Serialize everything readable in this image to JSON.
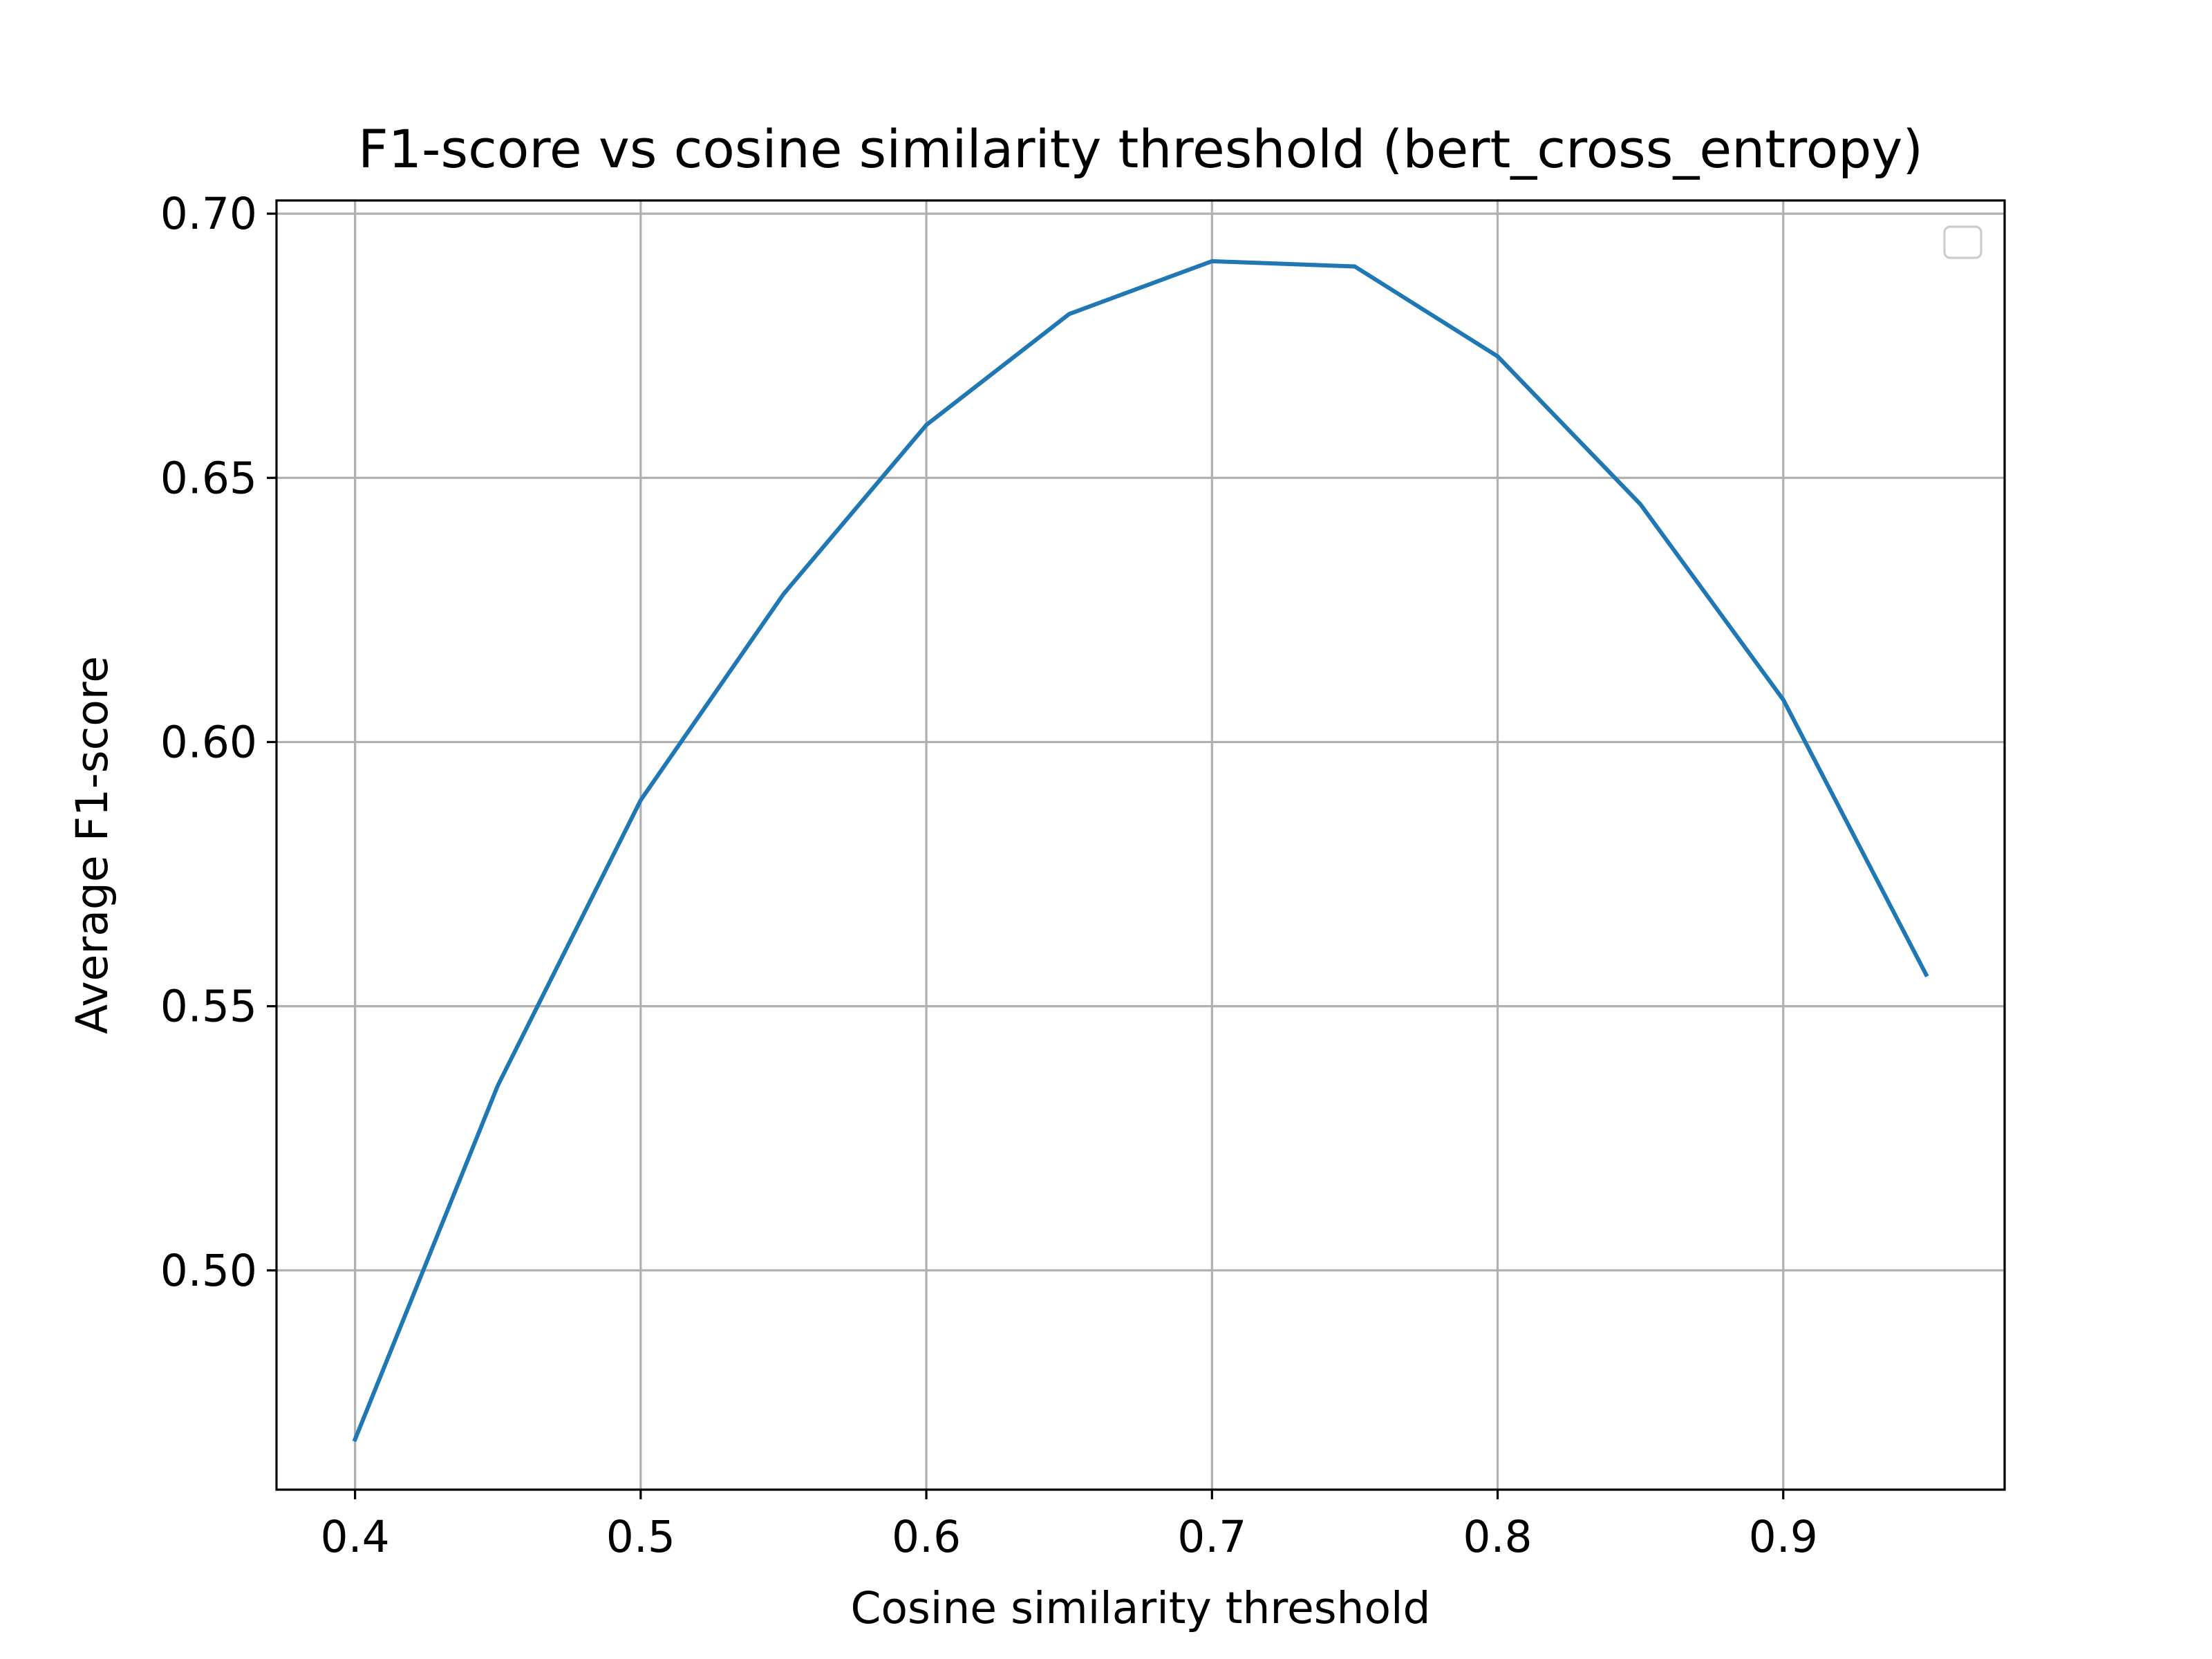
{
  "chart_data": {
    "type": "line",
    "title": "F1-score vs cosine similarity threshold (bert_cross_entropy)",
    "xlabel": "Cosine similarity threshold",
    "ylabel": "Average F1-score",
    "xlim": [
      0.3725,
      0.9775
    ],
    "ylim": [
      0.4585,
      0.7025
    ],
    "x_ticks": [
      0.4,
      0.5,
      0.6,
      0.7,
      0.8,
      0.9
    ],
    "x_tick_labels": [
      "0.4",
      "0.5",
      "0.6",
      "0.7",
      "0.8",
      "0.9"
    ],
    "y_ticks": [
      0.5,
      0.55,
      0.6,
      0.65,
      0.7
    ],
    "y_tick_labels": [
      "0.50",
      "0.55",
      "0.60",
      "0.65",
      "0.70"
    ],
    "grid": true,
    "legend": "upper right (empty)",
    "series": [
      {
        "color": "#1f77b4",
        "x": [
          0.4,
          0.45,
          0.5,
          0.55,
          0.6,
          0.65,
          0.7,
          0.75,
          0.8,
          0.85,
          0.9,
          0.95
        ],
        "y": [
          0.468,
          0.535,
          0.589,
          0.628,
          0.66,
          0.681,
          0.691,
          0.69,
          0.673,
          0.645,
          0.608,
          0.556
        ]
      }
    ]
  }
}
